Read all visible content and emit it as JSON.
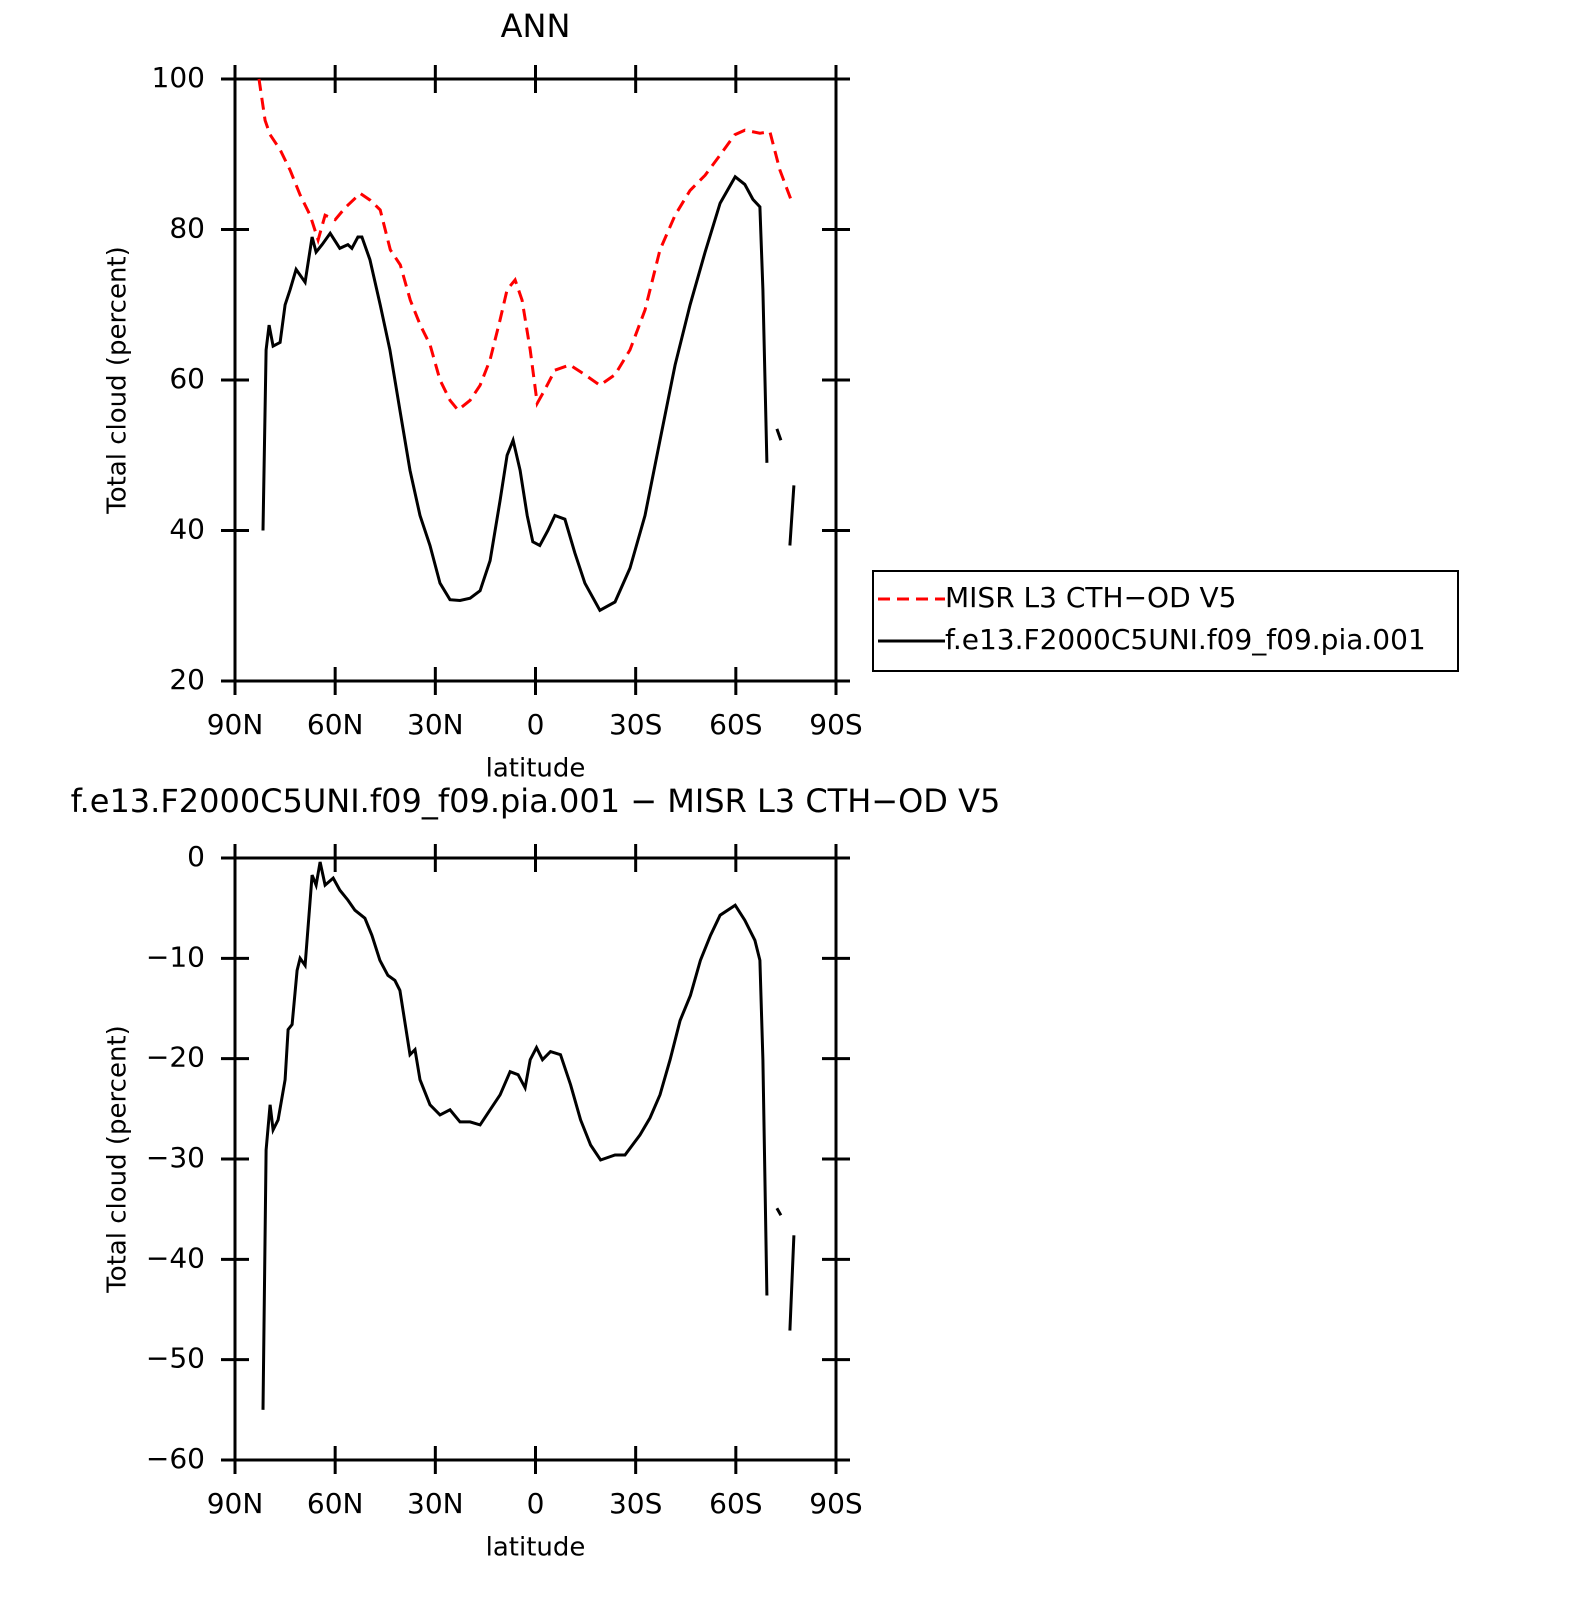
{
  "chart_data": [
    {
      "type": "line",
      "title": "ANN",
      "xlabel": "latitude",
      "ylabel": "Total cloud (percent)",
      "xlim": [
        90,
        -90
      ],
      "xticks": [
        {
          "value": 90,
          "label": "90N"
        },
        {
          "value": 60,
          "label": "60N"
        },
        {
          "value": 30,
          "label": "30N"
        },
        0,
        {
          "value": -30,
          "label": "30S"
        },
        {
          "value": -60,
          "label": "60S"
        },
        {
          "value": -90,
          "label": "90S"
        }
      ],
      "ylim": [
        20,
        100
      ],
      "yticks": [
        20,
        40,
        60,
        80,
        100
      ],
      "legend": "right",
      "series": [
        {
          "name": "MISR L3 CTH−OD V5",
          "color": "#ff0000",
          "linestyle": "dashed",
          "x": [
            82.8,
            81.0,
            79.5,
            76.5,
            73.5,
            70.5,
            67.5,
            65.1,
            63.0,
            60.0,
            57.0,
            52.5,
            49.5,
            46.5,
            43.5,
            40.5,
            37.5,
            34.5,
            31.6,
            28.6,
            25.6,
            23.2,
            19.6,
            16.6,
            13.6,
            10.6,
            8.5,
            6.1,
            4.0,
            1.6,
            -0.5,
            -2.8,
            -5.8,
            -10.3,
            -14.8,
            -19.3,
            -23.8,
            -28.3,
            -32.8,
            -37.3,
            -41.8,
            -46.3,
            -50.8,
            -55.3,
            -59.7,
            -62.7,
            -67.2,
            -70.2,
            -73.2,
            -77.1
          ],
          "values": [
            100,
            94.5,
            92.6,
            90.6,
            87.9,
            84.6,
            81.9,
            78.6,
            81.9,
            81.3,
            82.9,
            84.8,
            83.9,
            82.6,
            77.3,
            75.3,
            70.6,
            67.3,
            64.7,
            60,
            57.3,
            56,
            57.3,
            59.3,
            62.7,
            68,
            72,
            73.3,
            70.6,
            64,
            56.9,
            58.7,
            61.3,
            62,
            60.7,
            59.3,
            60.7,
            64,
            69.3,
            77.3,
            81.9,
            85.2,
            87.2,
            89.9,
            92.6,
            93.2,
            92.8,
            93,
            87.9,
            83.3
          ]
        },
        {
          "name": "f.e13.F2000C5UNI.f09_f09.pia.001",
          "color": "#000000",
          "linestyle": "solid",
          "x": [
            81.6,
            80.7,
            79.8,
            78.6,
            76.5,
            75.0,
            73.5,
            71.7,
            69.0,
            66.9,
            65.7,
            63.9,
            61.5,
            58.6,
            56.2,
            55.0,
            53.2,
            52.0,
            49.6,
            46.5,
            43.6,
            40.6,
            37.6,
            34.6,
            31.6,
            28.6,
            25.6,
            22.6,
            19.6,
            16.6,
            13.6,
            10.6,
            8.5,
            6.7,
            4.6,
            2.5,
            0.8,
            -1.3,
            -3.7,
            -5.8,
            -8.8,
            -11.8,
            -14.8,
            -19.3,
            -23.8,
            -28.3,
            -32.8,
            -37.3,
            -41.8,
            -46.3,
            -50.8,
            -55.3,
            -59.8,
            -62.7,
            -65.1,
            -67.2,
            -68.1,
            -69.3,
            -71,
            -72.3,
            -73.5,
            -75,
            -76.2,
            -77.4
          ],
          "values": [
            40,
            64,
            67.3,
            64.5,
            65,
            70,
            72,
            74.7,
            73,
            79,
            77,
            78,
            79.5,
            77.5,
            78,
            77.5,
            79,
            79,
            76,
            70,
            64,
            56,
            48,
            42,
            38,
            33,
            30.8,
            30.7,
            31,
            32,
            36,
            44,
            50,
            52,
            48,
            42,
            38.5,
            38,
            40,
            42,
            41.5,
            37,
            33,
            29.4,
            30.5,
            35,
            42,
            52,
            62,
            70,
            77,
            83.5,
            87,
            86,
            84,
            83,
            72,
            49,
            null,
            53.5,
            52,
            null,
            38,
            46
          ]
        }
      ]
    },
    {
      "type": "line",
      "title": "f.e13.F2000C5UNI.f09_f09.pia.001 − MISR L3 CTH−OD V5",
      "xlabel": "latitude",
      "ylabel": "Total cloud (percent)",
      "xlim": [
        90,
        -90
      ],
      "xticks": [
        {
          "value": 90,
          "label": "90N"
        },
        {
          "value": 60,
          "label": "60N"
        },
        {
          "value": 30,
          "label": "30N"
        },
        0,
        {
          "value": -30,
          "label": "30S"
        },
        {
          "value": -60,
          "label": "60S"
        },
        {
          "value": -90,
          "label": "90S"
        }
      ],
      "ylim": [
        -60,
        0
      ],
      "yticks": [
        {
          "value": -60,
          "label": "−60"
        },
        {
          "value": -50,
          "label": "−50"
        },
        {
          "value": -40,
          "label": "−40"
        },
        {
          "value": -30,
          "label": "−30"
        },
        {
          "value": -20,
          "label": "−20"
        },
        {
          "value": -10,
          "label": "−10"
        },
        0
      ],
      "series": [
        {
          "color": "#000000",
          "linestyle": "solid",
          "x": [
            81.6,
            80.7,
            79.5,
            78.6,
            77.1,
            75.0,
            74.1,
            72.9,
            71.4,
            70.5,
            69.0,
            66.9,
            65.7,
            64.5,
            63.0,
            60.6,
            58.6,
            56.2,
            54.1,
            51.1,
            49.0,
            46.6,
            44.2,
            42.1,
            40.6,
            37.6,
            36.1,
            34.6,
            31.6,
            28.6,
            25.6,
            22.6,
            19.6,
            16.6,
            13.6,
            10.6,
            7.6,
            5.2,
            3.1,
            1.6,
            -0.3,
            -2.1,
            -4.5,
            -7.5,
            -10.5,
            -13.5,
            -16.5,
            -19.5,
            -23.8,
            -26.8,
            -31.3,
            -34.3,
            -37.3,
            -40.3,
            -43.3,
            -46.4,
            -49.4,
            -52.4,
            -55.3,
            -59.8,
            -62.7,
            -65.7,
            -67.2,
            -68.1,
            -69.3,
            -71,
            -72.3,
            -73.5,
            -75,
            -76.2,
            -77.4
          ],
          "values": [
            -55,
            -29.1,
            -24.6,
            -27.1,
            -26.1,
            -22.1,
            -17.1,
            -16.6,
            -11.2,
            -10,
            -10.7,
            -1.7,
            -2.7,
            -0.4,
            -2.7,
            -2,
            -3.2,
            -4.2,
            -5.2,
            -6,
            -7.7,
            -10.2,
            -11.7,
            -12.2,
            -13.2,
            -19.6,
            -19.1,
            -22.1,
            -24.6,
            -25.6,
            -25.1,
            -26.3,
            -26.3,
            -26.6,
            -25.1,
            -23.6,
            -21.3,
            -21.6,
            -22.9,
            -20.1,
            -18.9,
            -20.1,
            -19.3,
            -19.6,
            -22.6,
            -26.1,
            -28.6,
            -30.1,
            -29.6,
            -29.6,
            -27.6,
            -25.9,
            -23.6,
            -20.1,
            -16.2,
            -13.7,
            -10.2,
            -7.7,
            -5.7,
            -4.7,
            -6.2,
            -8.2,
            -10.2,
            -20.1,
            -43.6,
            null,
            -34.9,
            -35.6,
            null,
            -47.1,
            -37.6
          ]
        }
      ]
    }
  ]
}
